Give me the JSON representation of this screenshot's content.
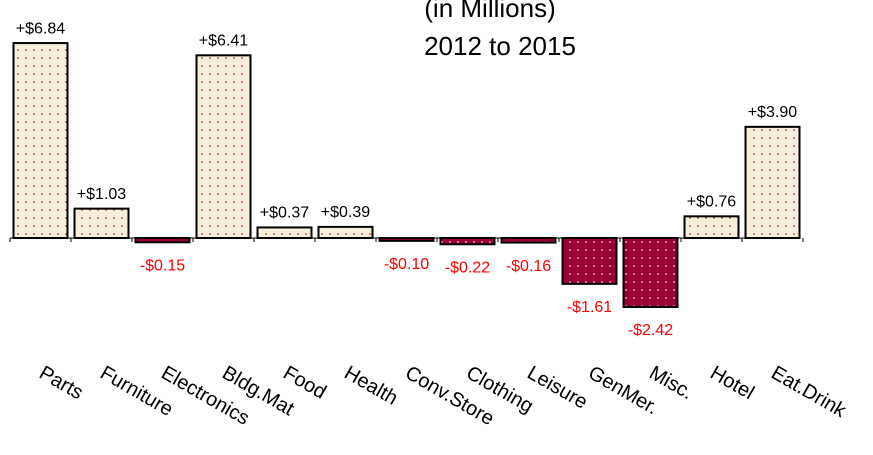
{
  "chart_data": {
    "type": "bar",
    "title_lines": [
      "(in Millions)",
      "2012 to 2015"
    ],
    "categories": [
      "Parts",
      "Furniture",
      "Electronics",
      "Bldg.Mat",
      "Food",
      "Health",
      "Conv.Store",
      "Clothing",
      "Leisure",
      "GenMer.",
      "Misc.",
      "Hotel",
      "Eat.Drink"
    ],
    "values": [
      6.84,
      1.03,
      -0.15,
      6.41,
      0.37,
      0.39,
      -0.1,
      -0.22,
      -0.16,
      -1.61,
      -2.42,
      0.76,
      3.9
    ],
    "value_labels": [
      "+$6.84",
      "+$1.03",
      "-$0.15",
      "+$6.41",
      "+$0.37",
      "+$0.39",
      "-$0.10",
      "-$0.22",
      "-$0.16",
      "-$1.61",
      "-$2.42",
      "+$0.76",
      "+$3.90"
    ],
    "positive_color": "#f5efdc",
    "negative_color": "#990033",
    "positive_label_color": "#000000",
    "negative_label_color": "#ff0000",
    "ylim": [
      -8,
      7
    ]
  }
}
